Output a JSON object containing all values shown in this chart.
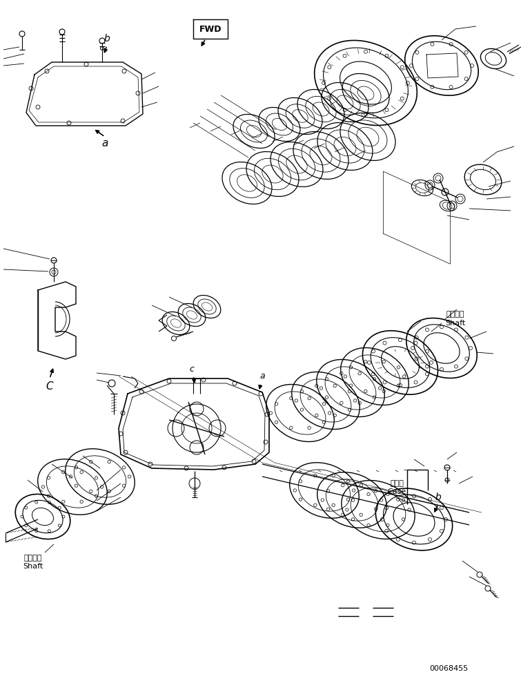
{
  "bg_color": "#ffffff",
  "line_color": "#000000",
  "fig_width": 7.55,
  "fig_height": 9.86,
  "dpi": 100,
  "part_number": "00068455",
  "labels": {
    "fwd": "FWD",
    "shaft_jp1": "シャフト",
    "shaft_en1": "Shaft",
    "shaft_jp2": "シャフト",
    "shaft_en2": "Shaft",
    "case_jp": "ケース",
    "case_en": "Case"
  }
}
